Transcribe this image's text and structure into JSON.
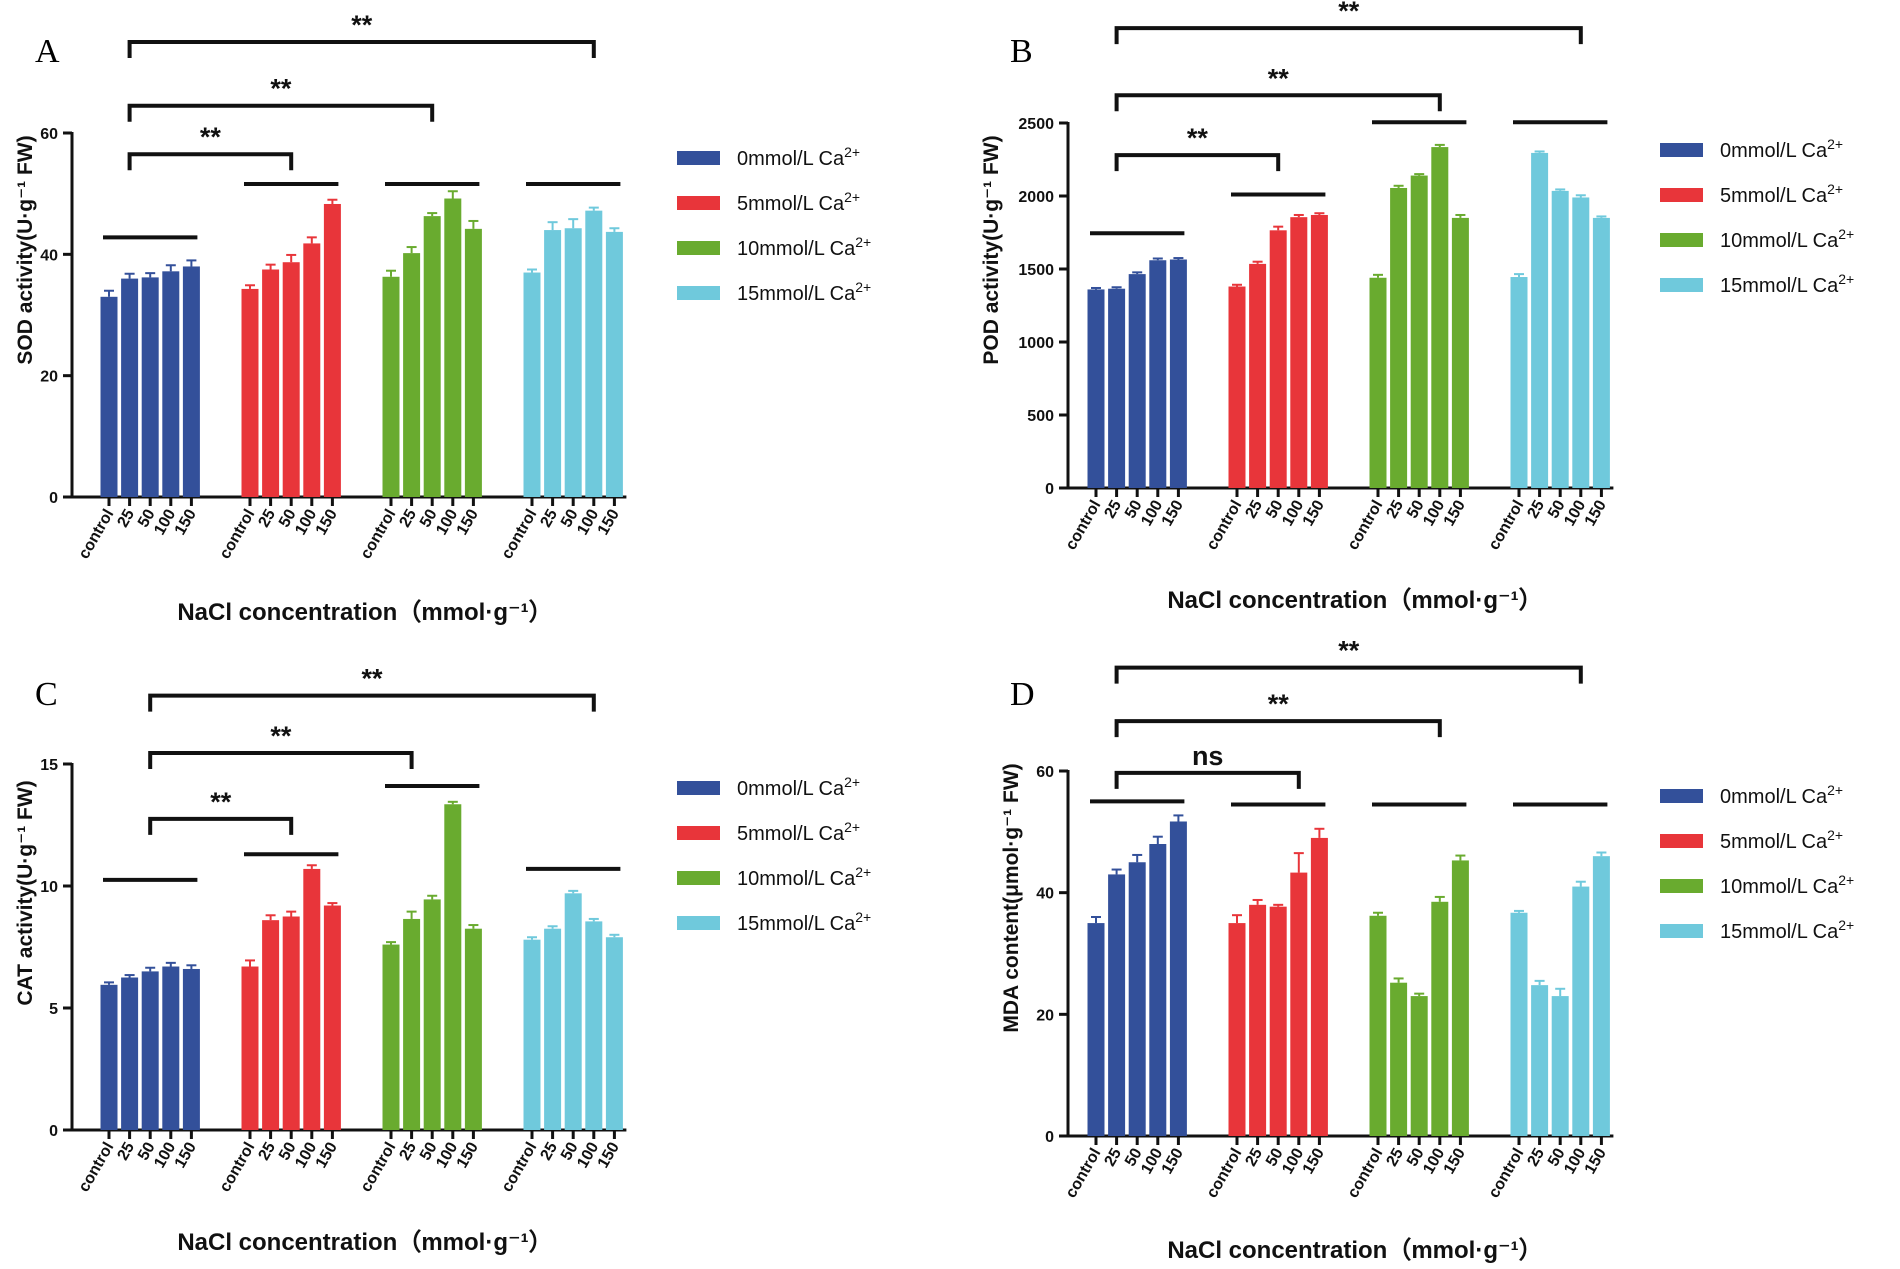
{
  "colors": {
    "0mmol": "#33509a",
    "5mmol": "#e8353a",
    "10mmol": "#69ab2f",
    "15mmol": "#6fc9dc",
    "axis": "#111111"
  },
  "chart_data": [
    {
      "panel": "A",
      "type": "bar",
      "ylabel": "SOD activity(U·g⁻¹ FW)",
      "xlabel": "NaCl concentration（mmol·g⁻¹）",
      "ylim": [
        0,
        60
      ],
      "yticks": [
        0,
        20,
        40,
        60
      ],
      "categories": [
        "control",
        "25",
        "50",
        "100",
        "150"
      ],
      "series": [
        {
          "name": "0mmol/L Ca2+",
          "color_key": "0mmol",
          "values": [
            33,
            36,
            36.2,
            37.2,
            38
          ],
          "errors": [
            1.0,
            0.8,
            0.7,
            1.0,
            1.0
          ]
        },
        {
          "name": "5mmol/L Ca2+",
          "color_key": "5mmol",
          "values": [
            34.3,
            37.5,
            38.7,
            41.8,
            48.3
          ],
          "errors": [
            0.6,
            0.8,
            1.2,
            1.0,
            0.7
          ]
        },
        {
          "name": "10mmol/L Ca2+",
          "color_key": "10mmol",
          "values": [
            36.3,
            40.2,
            46.3,
            49.2,
            44.2
          ],
          "errors": [
            1.0,
            1.0,
            0.5,
            1.2,
            1.3
          ]
        },
        {
          "name": "15mmol/L Ca2+",
          "color_key": "15mmol",
          "values": [
            37,
            44,
            44.3,
            47.2,
            43.7
          ],
          "errors": [
            0.5,
            1.3,
            1.5,
            0.5,
            0.6
          ]
        }
      ],
      "group_lines": [
        42.8,
        51.6,
        51.6,
        51.6
      ],
      "brackets": [
        {
          "from": [
            0,
            1
          ],
          "to": [
            1,
            2
          ],
          "level": 56.5,
          "label": "**"
        },
        {
          "from": [
            0,
            1
          ],
          "to": [
            2,
            2
          ],
          "level": 64.5,
          "label": "**"
        },
        {
          "from": [
            0,
            1
          ],
          "to": [
            3,
            3
          ],
          "level": 75.0,
          "label": "**"
        }
      ]
    },
    {
      "panel": "B",
      "type": "bar",
      "ylabel": "POD activity(U·g⁻¹ FW)",
      "xlabel": "NaCl concentration（mmol·g⁻¹）",
      "ylim": [
        0,
        2500
      ],
      "yticks": [
        0,
        500,
        1000,
        1500,
        2000,
        2500
      ],
      "categories": [
        "control",
        "25",
        "50",
        "100",
        "150"
      ],
      "series": [
        {
          "name": "0mmol/L Ca2+",
          "color_key": "0mmol",
          "values": [
            1360,
            1365,
            1465,
            1560,
            1565
          ],
          "errors": [
            10,
            10,
            12,
            12,
            10
          ]
        },
        {
          "name": "5mmol/L Ca2+",
          "color_key": "5mmol",
          "values": [
            1380,
            1535,
            1765,
            1855,
            1870
          ],
          "errors": [
            12,
            15,
            25,
            15,
            12
          ]
        },
        {
          "name": "10mmol/L Ca2+",
          "color_key": "10mmol",
          "values": [
            1440,
            2055,
            2140,
            2335,
            1850
          ],
          "errors": [
            20,
            15,
            10,
            15,
            20
          ]
        },
        {
          "name": "15mmol/L Ca2+",
          "color_key": "15mmol",
          "values": [
            1445,
            2295,
            2035,
            1990,
            1850
          ],
          "errors": [
            20,
            10,
            10,
            15,
            10
          ]
        }
      ],
      "group_lines": [
        1745,
        2010,
        2505,
        2505
      ],
      "brackets": [
        {
          "from": [
            0,
            1
          ],
          "to": [
            1,
            2
          ],
          "level": 2280,
          "label": "**"
        },
        {
          "from": [
            0,
            1
          ],
          "to": [
            2,
            3
          ],
          "level": 2690,
          "label": "**"
        },
        {
          "from": [
            0,
            1
          ],
          "to": [
            3,
            3
          ],
          "level": 3150,
          "label": "**"
        }
      ]
    },
    {
      "panel": "C",
      "type": "bar",
      "ylabel": "CAT activity(U·g⁻¹ FW)",
      "xlabel": "NaCl concentration（mmol·g⁻¹）",
      "ylim": [
        0,
        15
      ],
      "yticks": [
        0,
        5,
        10,
        15
      ],
      "categories": [
        "control",
        "25",
        "50",
        "100",
        "150"
      ],
      "series": [
        {
          "name": "0mmol/L Ca2+",
          "color_key": "0mmol",
          "values": [
            5.95,
            6.25,
            6.5,
            6.7,
            6.6
          ],
          "errors": [
            0.1,
            0.1,
            0.15,
            0.15,
            0.15
          ]
        },
        {
          "name": "5mmol/L Ca2+",
          "color_key": "5mmol",
          "values": [
            6.7,
            8.6,
            8.75,
            10.7,
            9.2
          ],
          "errors": [
            0.25,
            0.2,
            0.2,
            0.15,
            0.1
          ]
        },
        {
          "name": "10mmol/L Ca2+",
          "color_key": "10mmol",
          "values": [
            7.6,
            8.65,
            9.45,
            13.35,
            8.25
          ],
          "errors": [
            0.1,
            0.3,
            0.15,
            0.1,
            0.15
          ]
        },
        {
          "name": "15mmol/L Ca2+",
          "color_key": "15mmol",
          "values": [
            7.8,
            8.25,
            9.7,
            8.55,
            7.9
          ],
          "errors": [
            0.1,
            0.1,
            0.1,
            0.1,
            0.1
          ]
        }
      ],
      "group_lines": [
        10.25,
        11.3,
        14.1,
        10.7
      ],
      "brackets": [
        {
          "from": [
            0,
            2
          ],
          "to": [
            1,
            2
          ],
          "level": 12.75,
          "label": "**"
        },
        {
          "from": [
            0,
            2
          ],
          "to": [
            2,
            1
          ],
          "level": 15.45,
          "label": "**"
        },
        {
          "from": [
            0,
            2
          ],
          "to": [
            3,
            3
          ],
          "level": 17.8,
          "label": "**"
        }
      ]
    },
    {
      "panel": "D",
      "type": "bar",
      "ylabel": "MDA content(μmol·g⁻¹ FW)",
      "xlabel": "NaCl concentration（mmol·g⁻¹）",
      "ylim": [
        0,
        60
      ],
      "yticks": [
        0,
        20,
        40,
        60
      ],
      "categories": [
        "control",
        "25",
        "50",
        "100",
        "150"
      ],
      "series": [
        {
          "name": "0mmol/L Ca2+",
          "color_key": "0mmol",
          "values": [
            35,
            43,
            45,
            48,
            51.7
          ],
          "errors": [
            1.0,
            0.8,
            1.2,
            1.2,
            1.0
          ]
        },
        {
          "name": "5mmol/L Ca2+",
          "color_key": "5mmol",
          "values": [
            35,
            38,
            37.7,
            43.3,
            49
          ],
          "errors": [
            1.3,
            0.8,
            0.3,
            3.2,
            1.5
          ]
        },
        {
          "name": "10mmol/L Ca2+",
          "color_key": "10mmol",
          "values": [
            36.2,
            25.2,
            23,
            38.5,
            45.3
          ],
          "errors": [
            0.5,
            0.7,
            0.4,
            0.8,
            0.8
          ]
        },
        {
          "name": "15mmol/L Ca2+",
          "color_key": "15mmol",
          "values": [
            36.7,
            24.8,
            23,
            41,
            46
          ],
          "errors": [
            0.3,
            0.7,
            1.2,
            0.8,
            0.6
          ]
        }
      ],
      "group_lines": [
        55,
        54.5,
        54.5,
        54.5
      ],
      "brackets": [
        {
          "from": [
            0,
            1
          ],
          "to": [
            1,
            3
          ],
          "level": 59.7,
          "label": "ns"
        },
        {
          "from": [
            0,
            1
          ],
          "to": [
            2,
            3
          ],
          "level": 68.2,
          "label": "**"
        },
        {
          "from": [
            0,
            1
          ],
          "to": [
            3,
            3
          ],
          "level": 77.0,
          "label": "**"
        }
      ]
    }
  ]
}
